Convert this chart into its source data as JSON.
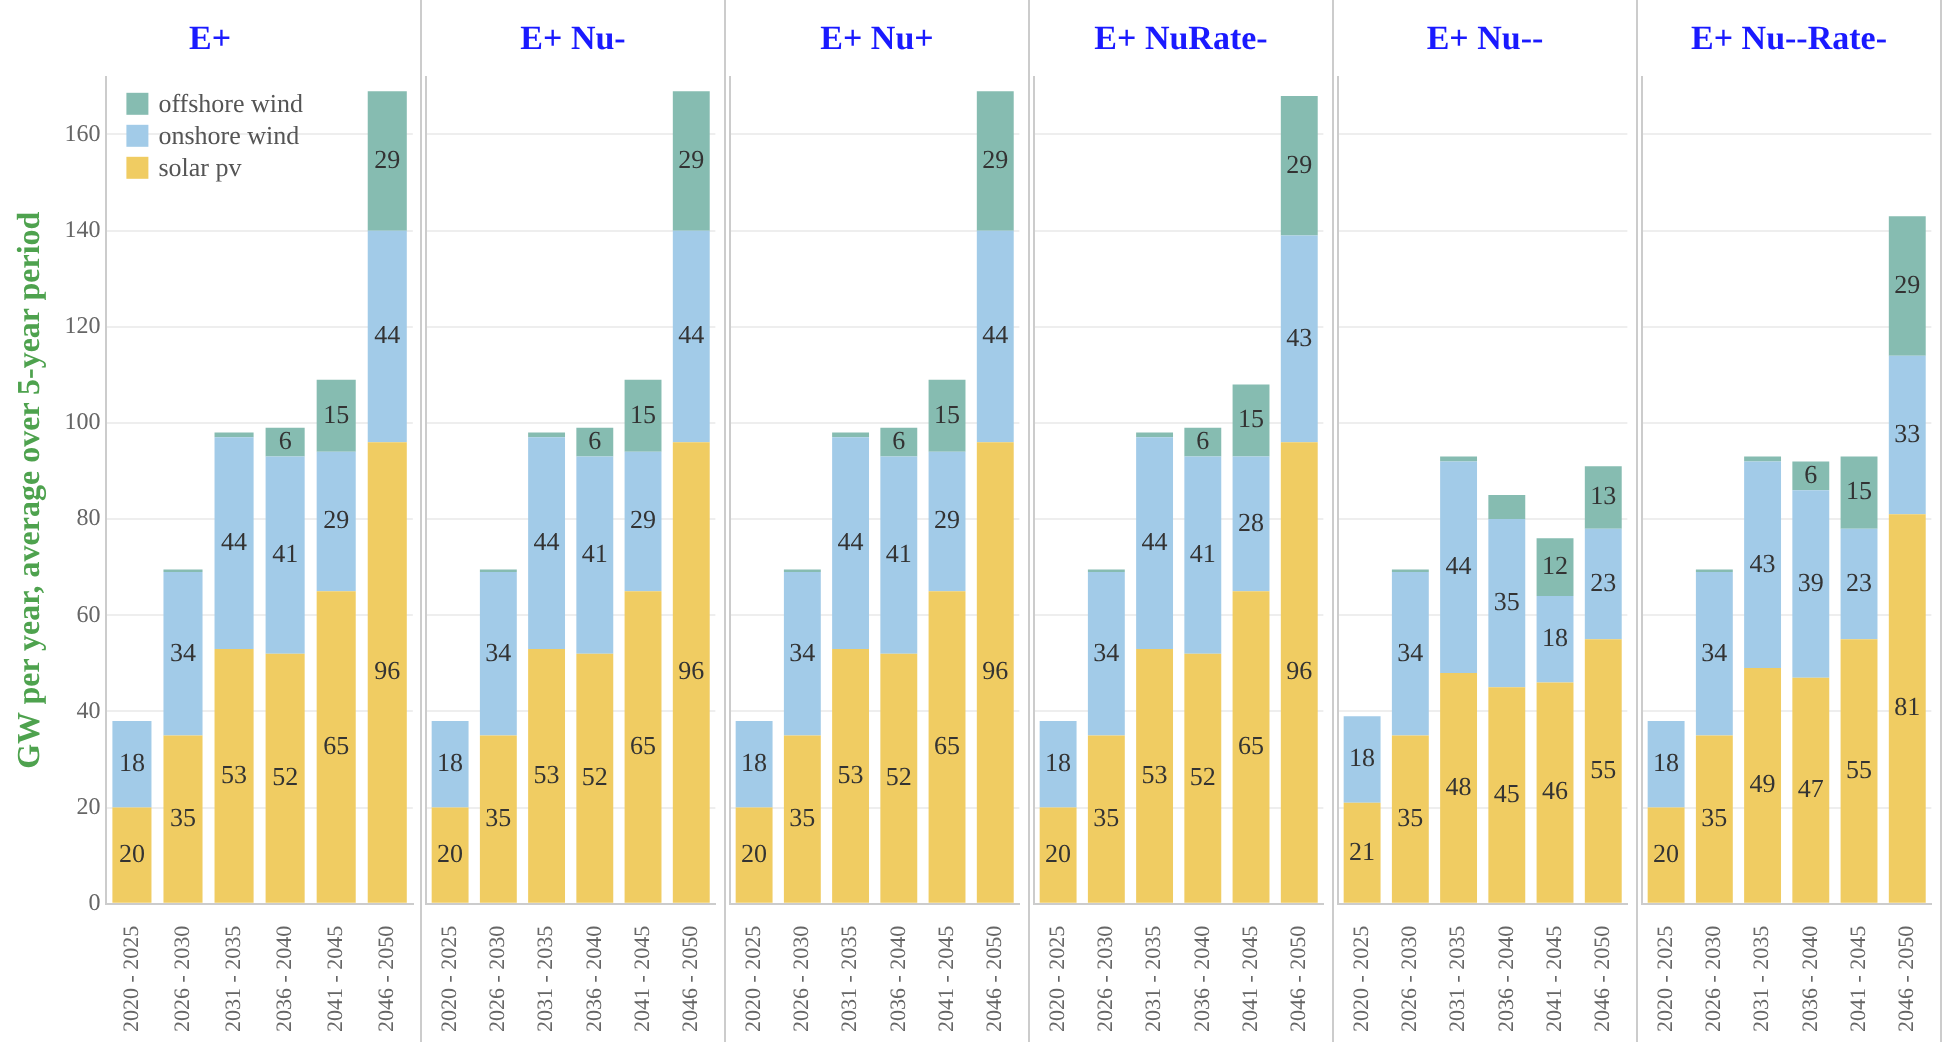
{
  "chart_data": [
    {
      "type": "bar",
      "title": "E+",
      "ylabel": "GW per year, average over 5-year period",
      "stacked": true,
      "grid": "y",
      "legend": "top left",
      "categories": [
        "2020 - 2025",
        "2026 - 2030",
        "2031 - 2035",
        "2036 - 2040",
        "2041 - 2045",
        "2046 - 2050"
      ],
      "ylim": [
        0,
        172
      ],
      "yticks": [
        0,
        20,
        40,
        60,
        80,
        100,
        120,
        140,
        160
      ],
      "series": [
        {
          "name": "solar pv",
          "color": "#f0cc62",
          "values": [
            20,
            35,
            53,
            52,
            65,
            96
          ],
          "value_labels": [
            "20",
            "35",
            "53",
            "52",
            "65",
            "96"
          ]
        },
        {
          "name": "onshore wind",
          "color": "#a2cbe8",
          "values": [
            18,
            34,
            44,
            41,
            29,
            44
          ],
          "value_labels": [
            "18",
            "34",
            "44",
            "41",
            "29",
            "44"
          ]
        },
        {
          "name": "offshore wind",
          "color": "#86bcb1",
          "values": [
            0,
            0.5,
            1,
            6,
            15,
            29
          ],
          "value_labels": [
            null,
            null,
            null,
            "6",
            "15",
            "29"
          ]
        }
      ]
    },
    {
      "type": "bar",
      "title": "E+ Nu-",
      "stacked": true,
      "grid": "y",
      "legend": false,
      "tick_labels": "x",
      "categories": [
        "2020 - 2025",
        "2026 - 2030",
        "2031 - 2035",
        "2036 - 2040",
        "2041 - 2045",
        "2046 - 2050"
      ],
      "ylim": [
        0,
        172
      ],
      "yticks": [
        0,
        20,
        40,
        60,
        80,
        100,
        120,
        140,
        160
      ],
      "series": [
        {
          "color": "#f0cc62",
          "values": [
            20,
            35,
            53,
            52,
            65,
            96
          ],
          "value_labels": [
            "20",
            "35",
            "53",
            "52",
            "65",
            "96"
          ]
        },
        {
          "color": "#a2cbe8",
          "values": [
            18,
            34,
            44,
            41,
            29,
            44
          ],
          "value_labels": [
            "18",
            "34",
            "44",
            "41",
            "29",
            "44"
          ]
        },
        {
          "color": "#86bcb1",
          "values": [
            0,
            0.5,
            1,
            6,
            15,
            29
          ],
          "value_labels": [
            null,
            null,
            null,
            "6",
            "15",
            "29"
          ]
        }
      ]
    },
    {
      "type": "bar",
      "title": "E+ Nu+",
      "stacked": true,
      "grid": "y",
      "legend": false,
      "tick_labels": "x",
      "categories": [
        "2020 - 2025",
        "2026 - 2030",
        "2031 - 2035",
        "2036 - 2040",
        "2041 - 2045",
        "2046 - 2050"
      ],
      "ylim": [
        0,
        172
      ],
      "yticks": [
        0,
        20,
        40,
        60,
        80,
        100,
        120,
        140,
        160
      ],
      "series": [
        {
          "color": "#f0cc62",
          "values": [
            20,
            35,
            53,
            52,
            65,
            96
          ],
          "value_labels": [
            "20",
            "35",
            "53",
            "52",
            "65",
            "96"
          ]
        },
        {
          "color": "#a2cbe8",
          "values": [
            18,
            34,
            44,
            41,
            29,
            44
          ],
          "value_labels": [
            "18",
            "34",
            "44",
            "41",
            "29",
            "44"
          ]
        },
        {
          "color": "#86bcb1",
          "values": [
            0,
            0.5,
            1,
            6,
            15,
            29
          ],
          "value_labels": [
            null,
            null,
            null,
            "6",
            "15",
            "29"
          ]
        }
      ]
    },
    {
      "type": "bar",
      "title": "E+ NuRate-",
      "stacked": true,
      "grid": "y",
      "legend": false,
      "tick_labels": "x",
      "categories": [
        "2020 - 2025",
        "2026 - 2030",
        "2031 - 2035",
        "2036 - 2040",
        "2041 - 2045",
        "2046 - 2050"
      ],
      "ylim": [
        0,
        172
      ],
      "yticks": [
        0,
        20,
        40,
        60,
        80,
        100,
        120,
        140,
        160
      ],
      "series": [
        {
          "color": "#f0cc62",
          "values": [
            20,
            35,
            53,
            52,
            65,
            96
          ],
          "value_labels": [
            "20",
            "35",
            "53",
            "52",
            "65",
            "96"
          ]
        },
        {
          "color": "#a2cbe8",
          "values": [
            18,
            34,
            44,
            41,
            28,
            43
          ],
          "value_labels": [
            "18",
            "34",
            "44",
            "41",
            "28",
            "43"
          ]
        },
        {
          "color": "#86bcb1",
          "values": [
            0,
            0.5,
            1,
            6,
            15,
            29
          ],
          "value_labels": [
            null,
            null,
            null,
            "6",
            "15",
            "29"
          ]
        }
      ]
    },
    {
      "type": "bar",
      "title": "E+ Nu--",
      "stacked": true,
      "grid": "y",
      "legend": false,
      "tick_labels": "x",
      "categories": [
        "2020 - 2025",
        "2026 - 2030",
        "2031 - 2035",
        "2036 - 2040",
        "2041 - 2045",
        "2046 - 2050"
      ],
      "ylim": [
        0,
        172
      ],
      "yticks": [
        0,
        20,
        40,
        60,
        80,
        100,
        120,
        140,
        160
      ],
      "series": [
        {
          "color": "#f0cc62",
          "values": [
            21,
            35,
            48,
            45,
            46,
            55
          ],
          "value_labels": [
            "21",
            "35",
            "48",
            "45",
            "46",
            "55"
          ]
        },
        {
          "color": "#a2cbe8",
          "values": [
            18,
            34,
            44,
            35,
            18,
            23
          ],
          "value_labels": [
            "18",
            "34",
            "44",
            "35",
            "18",
            "23"
          ]
        },
        {
          "color": "#86bcb1",
          "values": [
            0,
            0.5,
            1,
            5,
            12,
            13
          ],
          "value_labels": [
            null,
            null,
            null,
            null,
            "12",
            "13"
          ]
        }
      ]
    },
    {
      "type": "bar",
      "title": "E+ Nu--Rate-",
      "stacked": true,
      "grid": "y",
      "legend": false,
      "tick_labels": "x",
      "categories": [
        "2020 - 2025",
        "2026 - 2030",
        "2031 - 2035",
        "2036 - 2040",
        "2041 - 2045",
        "2046 - 2050"
      ],
      "ylim": [
        0,
        172
      ],
      "yticks": [
        0,
        20,
        40,
        60,
        80,
        100,
        120,
        140,
        160
      ],
      "series": [
        {
          "color": "#f0cc62",
          "values": [
            20,
            35,
            49,
            47,
            55,
            81
          ],
          "value_labels": [
            "20",
            "35",
            "49",
            "47",
            "55",
            "81"
          ]
        },
        {
          "color": "#a2cbe8",
          "values": [
            18,
            34,
            43,
            39,
            23,
            33
          ],
          "value_labels": [
            "18",
            "34",
            "43",
            "39",
            "23",
            "33"
          ]
        },
        {
          "color": "#86bcb1",
          "values": [
            0,
            0.5,
            1,
            6,
            15,
            29
          ],
          "value_labels": [
            null,
            null,
            null,
            "6",
            "15",
            "29"
          ]
        }
      ]
    }
  ]
}
